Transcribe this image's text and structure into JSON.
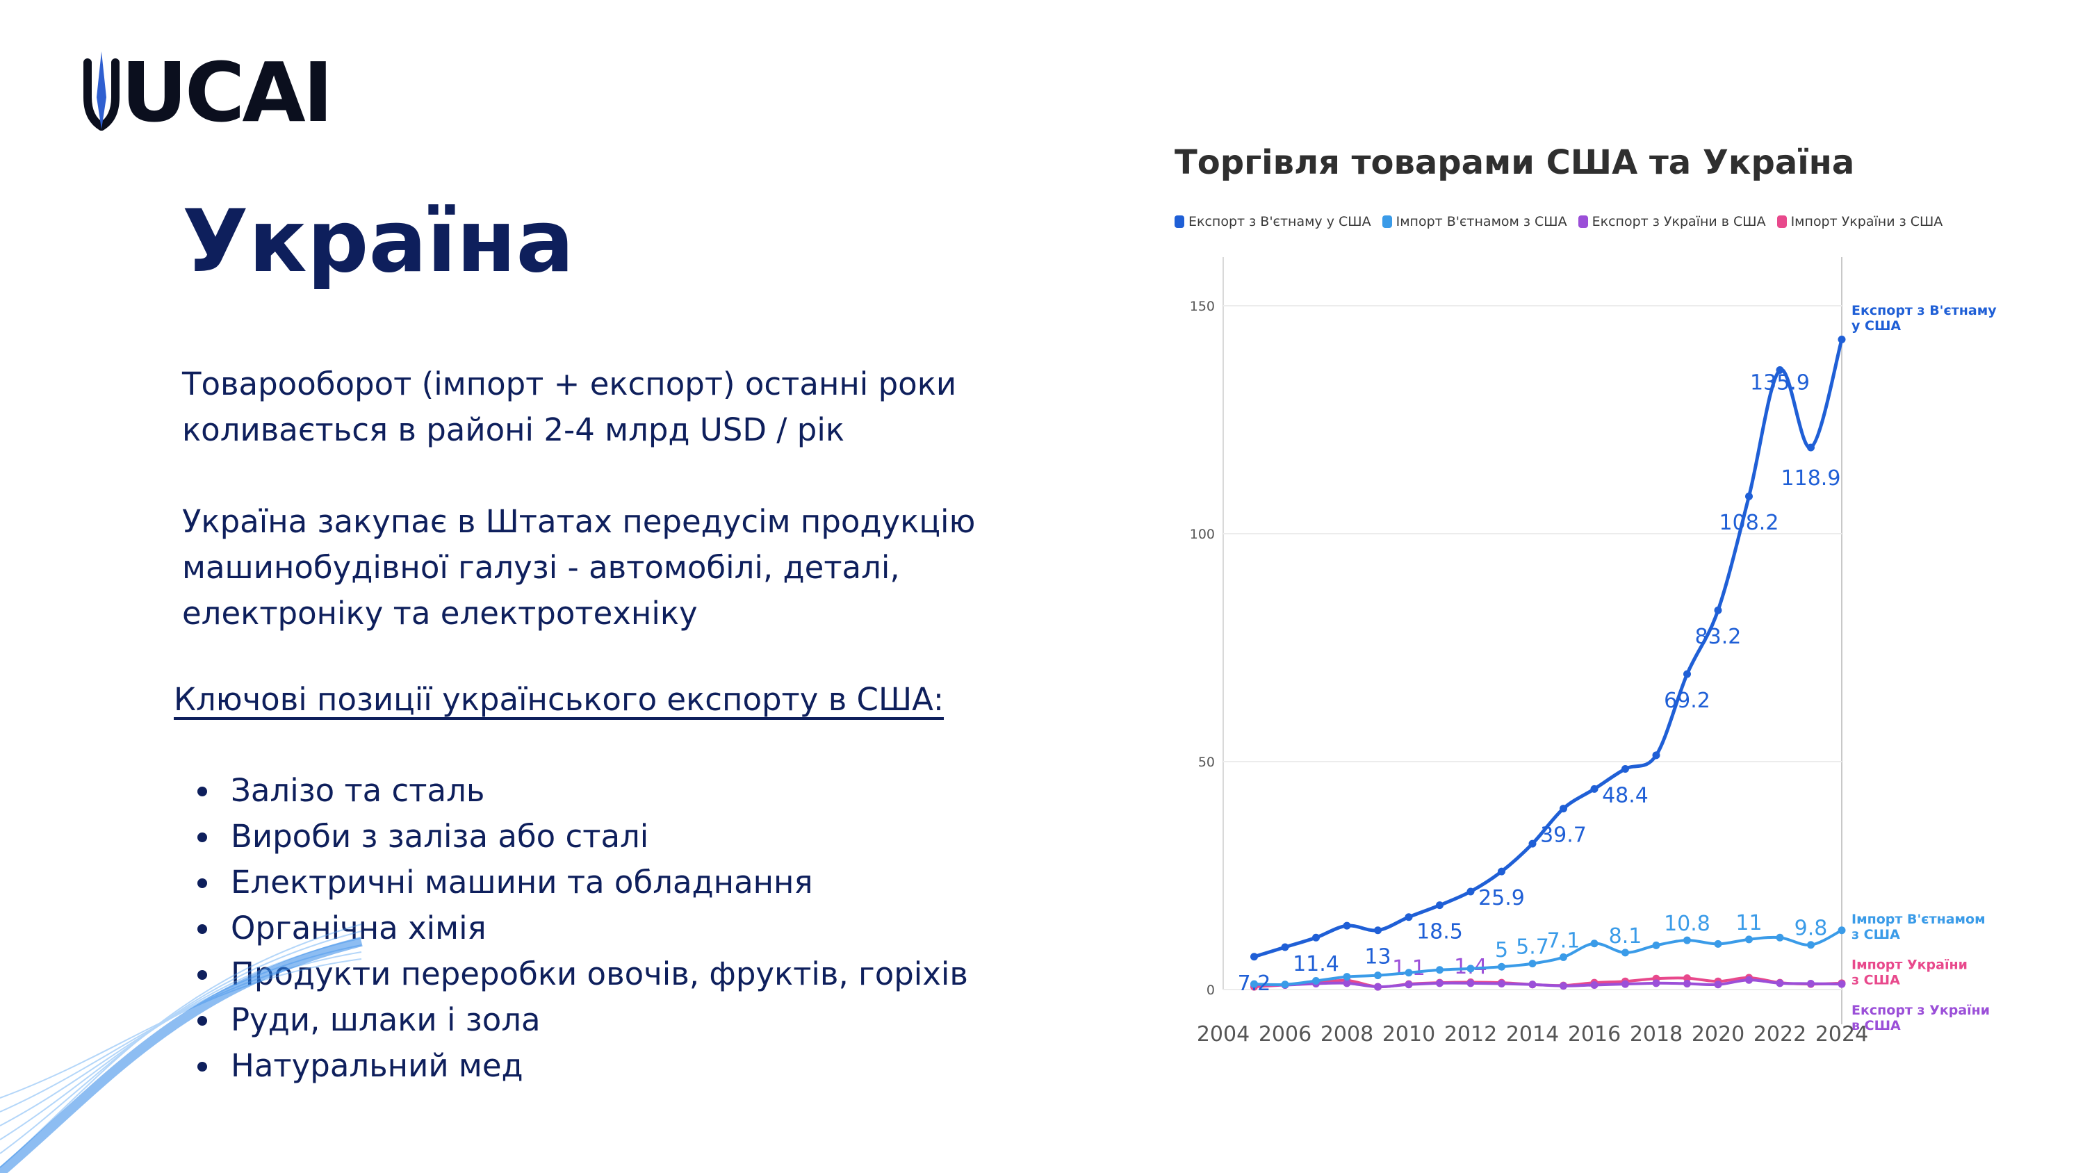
{
  "brand": {
    "logo_text": "UCAI",
    "logo_mark": "trident-mark"
  },
  "slide": {
    "title": "Україна",
    "paragraph1": "Товарооборот (імпорт + експорт) останні роки коливається в районі 2-4 млрд USD / рік",
    "paragraph2": "Україна закупає в Штатах передусім продукцію машинобудівної галузі - автомобілі, деталі, електроніку та електротехніку",
    "subheading": "Ключові позиції українського експорту в США:",
    "bullets": [
      "Залізо та сталь",
      "Вироби з заліза або сталі",
      "Електричні машини та обладнання",
      "Органічна хімія",
      "Продукти переробки овочів, фруктів, горіхів",
      "Руди, шлаки і зола",
      "Натуральний мед"
    ]
  },
  "chart_data": {
    "type": "line",
    "title": "Торгівля товарами США та Україна",
    "xlim": [
      2004,
      2024
    ],
    "ylim": [
      0,
      150
    ],
    "x_ticks": [
      2004,
      2006,
      2008,
      2010,
      2012,
      2014,
      2016,
      2018,
      2020,
      2022,
      2024
    ],
    "y_ticks": [
      0,
      50,
      100,
      150
    ],
    "grid": true,
    "legend_position": "top",
    "series": [
      {
        "name": "Експорт з В'єтнаму у США",
        "end_label": "Експорт з В'єтнаму у США",
        "color": "#1f5fd6",
        "x": [
          2005,
          2006,
          2007,
          2008,
          2009,
          2010,
          2011,
          2012,
          2013,
          2014,
          2015,
          2016,
          2017,
          2018,
          2019,
          2020,
          2021,
          2022,
          2023,
          2024
        ],
        "values": [
          7.2,
          9.3,
          11.4,
          14.0,
          13.0,
          15.9,
          18.5,
          21.5,
          25.9,
          32.0,
          39.7,
          44.0,
          48.4,
          51.4,
          69.2,
          83.2,
          108.2,
          135.9,
          118.9,
          142.6
        ],
        "data_labels": [
          {
            "x": 2005,
            "text": "7.2"
          },
          {
            "x": 2007,
            "text": "11.4"
          },
          {
            "x": 2009,
            "text": "13"
          },
          {
            "x": 2011,
            "text": "18.5"
          },
          {
            "x": 2013,
            "text": "25.9"
          },
          {
            "x": 2015,
            "text": "39.7"
          },
          {
            "x": 2017,
            "text": "48.4"
          },
          {
            "x": 2019,
            "text": "69.2"
          },
          {
            "x": 2020,
            "text": "83.2"
          },
          {
            "x": 2021,
            "text": "108.2"
          },
          {
            "x": 2022,
            "text": "135.9"
          },
          {
            "x": 2023,
            "text": "118.9"
          }
        ]
      },
      {
        "name": "Імпорт В'єтнамом з США",
        "end_label": "Імпорт В'єтнамом з США",
        "color": "#3a9be8",
        "x": [
          2005,
          2006,
          2007,
          2008,
          2009,
          2010,
          2011,
          2012,
          2013,
          2014,
          2015,
          2016,
          2017,
          2018,
          2019,
          2020,
          2021,
          2022,
          2023,
          2024
        ],
        "values": [
          1.2,
          1.1,
          1.9,
          2.8,
          3.1,
          3.7,
          4.3,
          4.6,
          5.0,
          5.7,
          7.1,
          10.1,
          8.1,
          9.7,
          10.8,
          10.0,
          11.0,
          11.4,
          9.8,
          13.0
        ],
        "data_labels": [
          {
            "x": 2013,
            "text": "5"
          },
          {
            "x": 2014,
            "text": "5.7"
          },
          {
            "x": 2015,
            "text": "7.1"
          },
          {
            "x": 2017,
            "text": "8.1"
          },
          {
            "x": 2019,
            "text": "10.8"
          },
          {
            "x": 2021,
            "text": "11"
          },
          {
            "x": 2023,
            "text": "9.8"
          }
        ]
      },
      {
        "name": "Експорт з України в США",
        "end_label": "Експорт з України в США",
        "color": "#9b4fd8",
        "x": [
          2005,
          2006,
          2007,
          2008,
          2009,
          2010,
          2011,
          2012,
          2013,
          2014,
          2015,
          2016,
          2017,
          2018,
          2019,
          2020,
          2021,
          2022,
          2023,
          2024
        ],
        "values": [
          1.1,
          1.0,
          1.3,
          1.4,
          0.6,
          1.1,
          1.4,
          1.4,
          1.3,
          1.1,
          0.8,
          1.0,
          1.2,
          1.4,
          1.3,
          1.1,
          2.1,
          1.4,
          1.3,
          1.2
        ],
        "data_labels": [
          {
            "x": 2010,
            "text": "1.1"
          },
          {
            "x": 2012,
            "text": "1.4"
          }
        ]
      },
      {
        "name": "Імпорт України з США",
        "end_label": "Імпорт України з США",
        "color": "#e8498c",
        "x": [
          2005,
          2006,
          2007,
          2008,
          2009,
          2010,
          2011,
          2012,
          2013,
          2014,
          2015,
          2016,
          2017,
          2018,
          2019,
          2020,
          2021,
          2022,
          2023,
          2024
        ],
        "values": [
          0.6,
          1.0,
          1.4,
          2.0,
          0.6,
          1.2,
          1.5,
          1.6,
          1.5,
          1.1,
          0.9,
          1.5,
          1.8,
          2.4,
          2.5,
          1.8,
          2.6,
          1.5,
          1.2,
          1.4
        ],
        "data_labels": []
      }
    ]
  }
}
